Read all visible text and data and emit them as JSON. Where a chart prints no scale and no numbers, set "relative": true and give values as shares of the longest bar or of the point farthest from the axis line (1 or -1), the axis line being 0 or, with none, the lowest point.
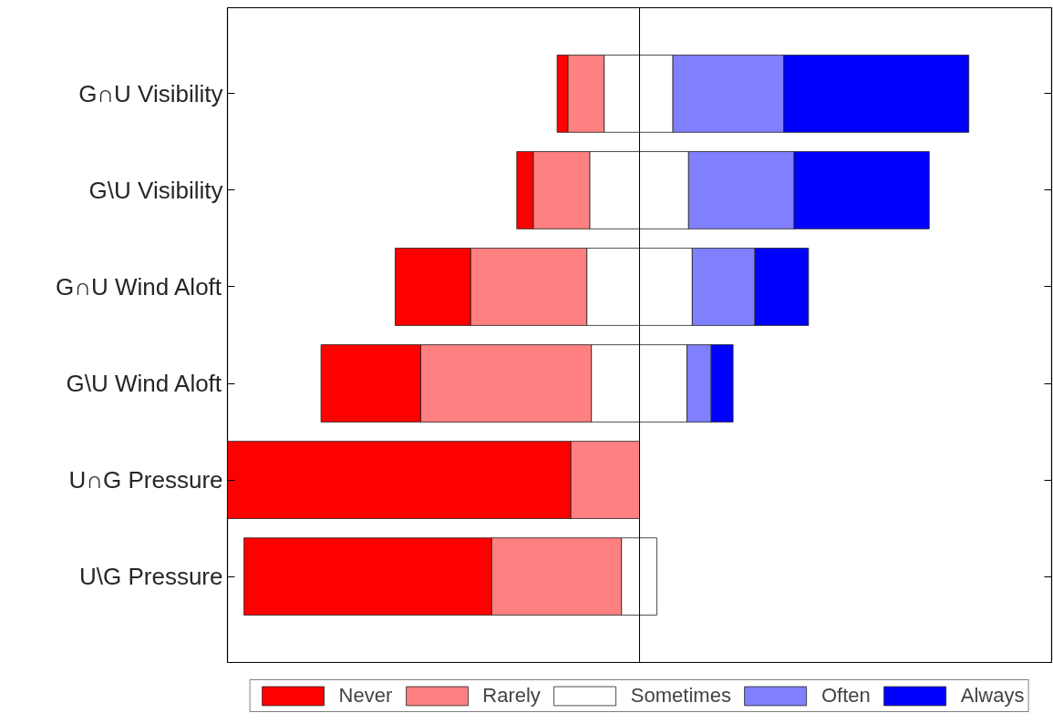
{
  "chart_data": {
    "type": "bar",
    "orientation": "horizontal",
    "stacked": true,
    "relative": true,
    "legend": "bottom",
    "categories": [
      "G∩U Visibility",
      "G\\U Visibility",
      "G∩U Wind Aloft",
      "G\\U Wind Aloft",
      "U∩G Pressure",
      "U\\G Pressure"
    ],
    "series": [
      {
        "name": "Sometimes",
        "color": "#ffffff",
        "values": [
          -0.086,
          -0.121,
          -0.128,
          -0.117,
          0,
          -0.044
        ]
      },
      {
        "name": "Rarely",
        "color": "#ff8080",
        "values": [
          -0.088,
          -0.137,
          -0.282,
          -0.414,
          -0.167,
          -0.315
        ]
      },
      {
        "name": "Never",
        "color": "#ff0000",
        "values": [
          -0.026,
          -0.04,
          -0.183,
          -0.242,
          -0.833,
          -0.601
        ]
      },
      {
        "color": "#ffffff",
        "values": [
          0.081,
          0.119,
          0.128,
          0.115,
          0,
          0.042
        ]
      },
      {
        "name": "Often",
        "color": "#8080ff",
        "values": [
          0.269,
          0.256,
          0.152,
          0.059,
          0,
          0
        ]
      },
      {
        "name": "Always",
        "color": "#0000ff",
        "values": [
          0.449,
          0.328,
          0.13,
          0.053,
          0,
          0
        ]
      }
    ]
  }
}
